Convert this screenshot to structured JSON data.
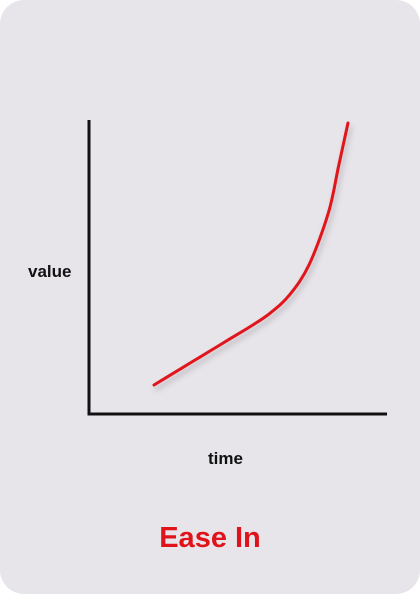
{
  "title": "Ease In",
  "xlabel": "time",
  "ylabel": "value",
  "colors": {
    "card_background": "#e7e5ea",
    "curve": "#e0131b",
    "axes": "#111111",
    "title": "#e0131b"
  },
  "chart_data": {
    "type": "line",
    "title": "Ease In",
    "xlabel": "time",
    "ylabel": "value",
    "grid": false,
    "legend": "none",
    "series": [
      {
        "points": [
          [
            0.0,
            0.0
          ],
          [
            0.1,
            0.045
          ],
          [
            0.2,
            0.09
          ],
          [
            0.3,
            0.135
          ],
          [
            0.4,
            0.18
          ],
          [
            0.5,
            0.225
          ],
          [
            0.6,
            0.275
          ],
          [
            0.7,
            0.345
          ],
          [
            0.8,
            0.46
          ],
          [
            0.9,
            0.66
          ],
          [
            0.95,
            0.83
          ],
          [
            1.0,
            1.0
          ]
        ]
      }
    ]
  }
}
